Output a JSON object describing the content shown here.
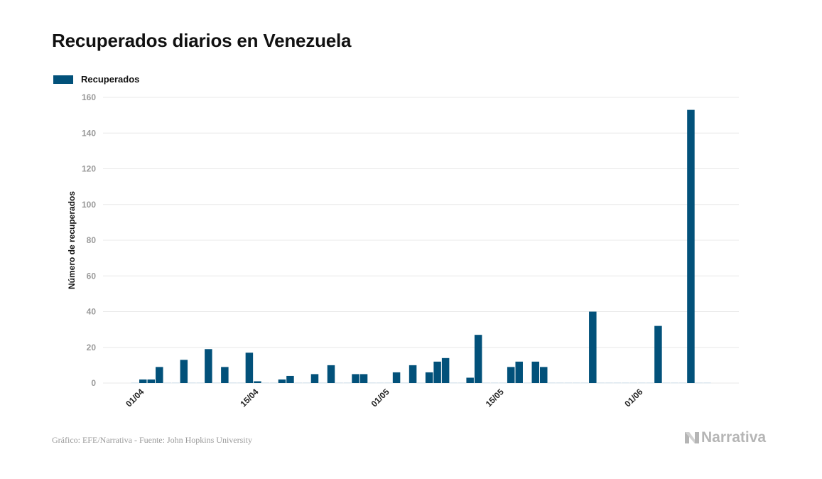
{
  "title": "Recuperados diarios en Venezuela",
  "footer": "Gráfico: EFE/Narrativa - Fuente: John Hopkins University",
  "logo_text": "Narrativa",
  "colors": {
    "bar": "#02517a",
    "zero": "#dbe6ee",
    "grid": "#e8e8e8",
    "tick": "#999999"
  },
  "chart_data": {
    "type": "bar",
    "title": "Recuperados diarios en Venezuela",
    "xlabel": "",
    "ylabel": "Número de recuperados",
    "ylim": [
      0,
      160
    ],
    "yticks": [
      0,
      20,
      40,
      60,
      80,
      100,
      120,
      140,
      160
    ],
    "grid": true,
    "legend": {
      "placement": "top-left",
      "entries": [
        "Recuperados"
      ]
    },
    "xtick_labels": [
      "01/04",
      "15/04",
      "01/05",
      "15/05",
      "01/06"
    ],
    "categories": [
      "31/03",
      "01/04",
      "02/04",
      "03/04",
      "04/04",
      "05/04",
      "06/04",
      "07/04",
      "08/04",
      "09/04",
      "10/04",
      "11/04",
      "12/04",
      "13/04",
      "14/04",
      "15/04",
      "16/04",
      "17/04",
      "18/04",
      "19/04",
      "20/04",
      "21/04",
      "22/04",
      "23/04",
      "24/04",
      "25/04",
      "26/04",
      "27/04",
      "28/04",
      "29/04",
      "30/04",
      "01/05",
      "02/05",
      "03/05",
      "04/05",
      "05/05",
      "06/05",
      "07/05",
      "08/05",
      "09/05",
      "10/05",
      "11/05",
      "12/05",
      "13/05",
      "14/05",
      "15/05",
      "16/05",
      "17/05",
      "18/05",
      "19/05",
      "20/05",
      "21/05",
      "22/05",
      "23/05",
      "24/05",
      "25/05",
      "26/05",
      "27/05",
      "28/05",
      "29/05",
      "30/05",
      "31/05",
      "01/06",
      "02/06",
      "03/06",
      "04/06",
      "05/06",
      "06/06",
      "07/06",
      "08/06",
      "09/06"
    ],
    "series": [
      {
        "name": "Recuperados",
        "values": [
          0,
          2,
          2,
          9,
          0,
          0,
          13,
          0,
          0,
          19,
          0,
          9,
          0,
          0,
          17,
          1,
          0,
          0,
          2,
          4,
          0,
          0,
          5,
          0,
          10,
          0,
          0,
          5,
          5,
          0,
          0,
          0,
          6,
          0,
          10,
          0,
          6,
          12,
          14,
          0,
          0,
          3,
          27,
          0,
          0,
          0,
          9,
          12,
          0,
          12,
          9,
          0,
          0,
          0,
          0,
          0,
          40,
          0,
          0,
          0,
          0,
          0,
          0,
          0,
          32,
          0,
          0,
          0,
          153,
          0,
          0
        ]
      }
    ]
  }
}
